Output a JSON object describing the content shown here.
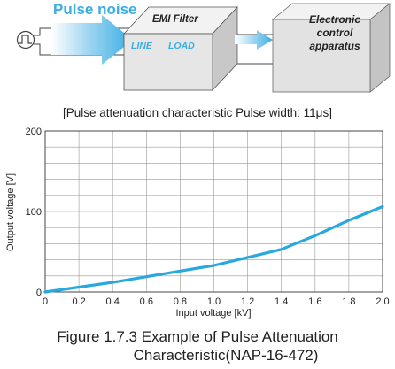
{
  "diagram": {
    "pulse_noise_label": "Pulse noise",
    "filter_title": "EMI Filter",
    "filter_line": "LINE",
    "filter_load": "LOAD",
    "apparatus_lines": [
      "Electronic",
      "control",
      "apparatus"
    ],
    "colors": {
      "accent_blue": "#3aaee2",
      "box_face": "#e6e6e6",
      "box_top": "#f2f2f2",
      "box_side": "#c8c8c8"
    },
    "source_icon": "pulse-generator-icon"
  },
  "chart_data": {
    "type": "line",
    "title": "[Pulse attenuation characteristic Pulse width: 11μs]",
    "xlabel": "Input voltage [kV]",
    "ylabel": "Output voltage [V]",
    "xlim": [
      0,
      2.0
    ],
    "ylim": [
      0,
      200
    ],
    "x_ticks": [
      "0",
      "0.2",
      "0.4",
      "0.6",
      "0.8",
      "1.0",
      "1.2",
      "1.4",
      "1.6",
      "1.8",
      "2.0"
    ],
    "y_ticks": [
      "0",
      "100",
      "200"
    ],
    "grid": true,
    "series": [
      {
        "color": "#29a8e0",
        "x": [
          0,
          0.2,
          0.4,
          0.6,
          0.8,
          1.0,
          1.2,
          1.4,
          1.6,
          1.8,
          2.0
        ],
        "y": [
          0,
          6,
          12,
          19,
          26,
          33,
          43,
          53,
          70,
          89,
          106
        ]
      }
    ]
  },
  "caption": {
    "line1": "Figure 1.7.3  Example of Pulse Attenuation",
    "line2": "Characteristic(NAP-16-472)"
  }
}
